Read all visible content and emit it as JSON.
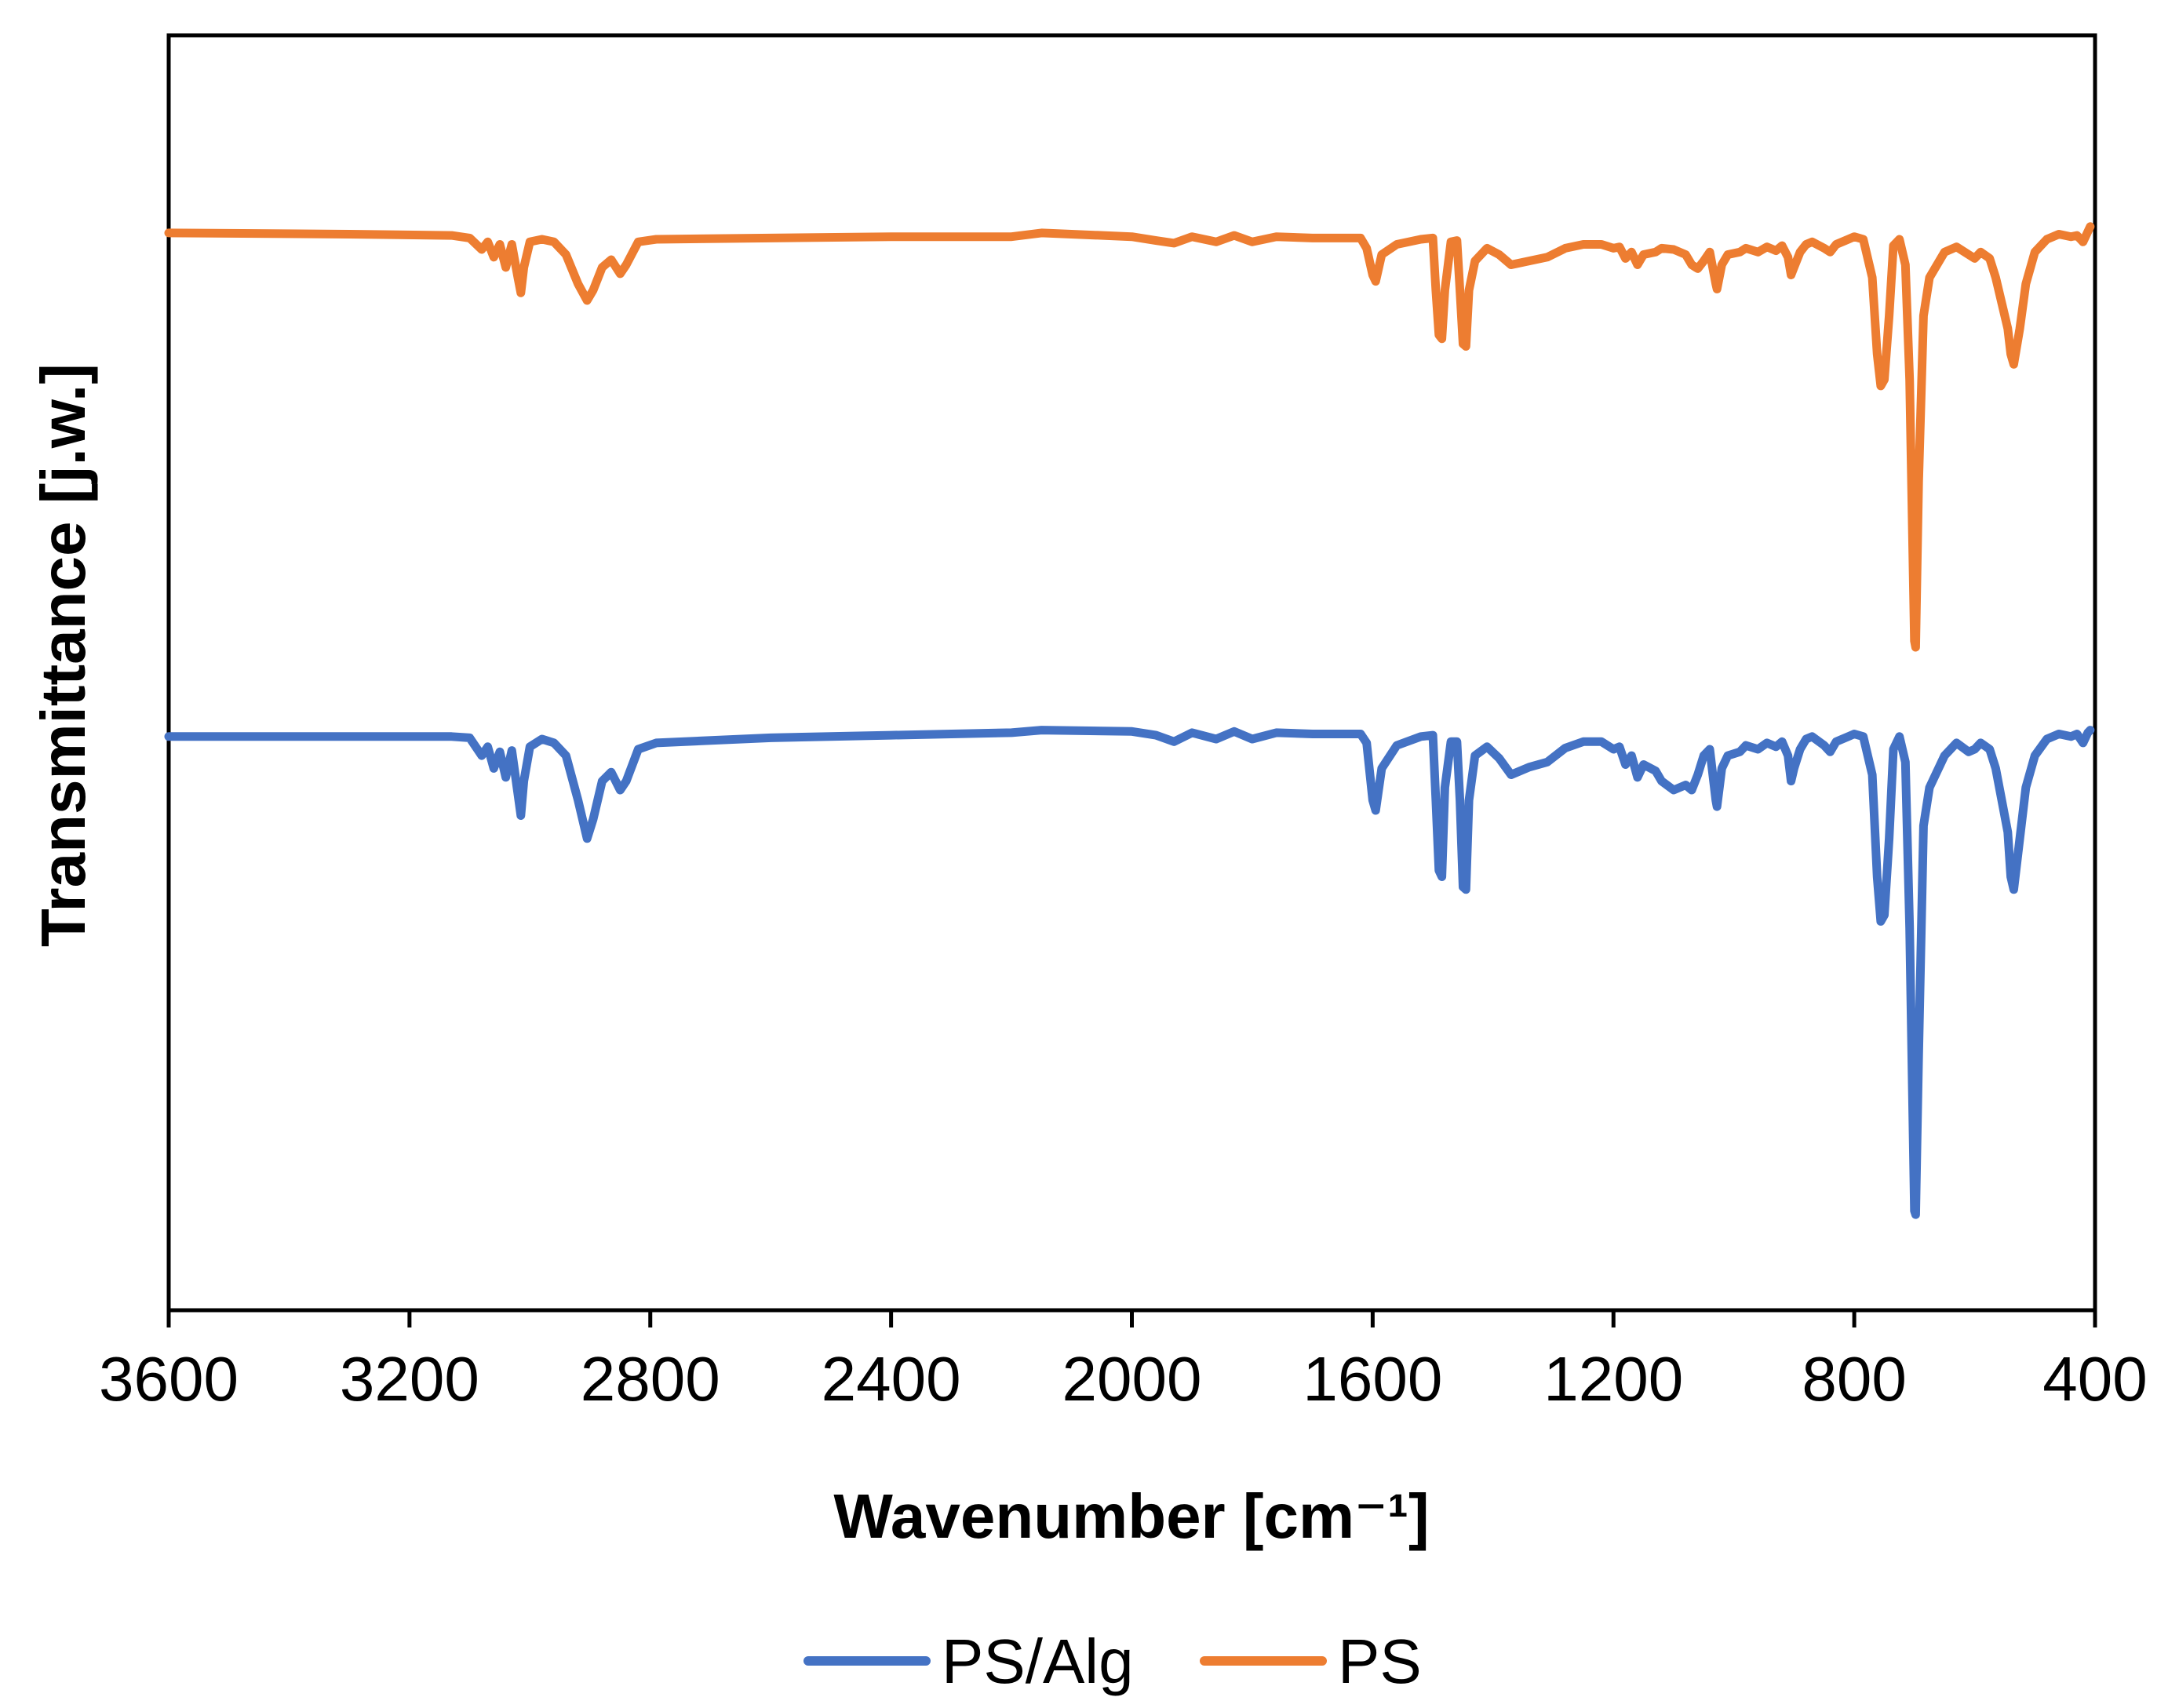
{
  "chart_data": {
    "type": "line",
    "title": "",
    "xlabel": "Wavenumber [cm⁻¹]",
    "ylabel": "Transmittance [j.w.]",
    "xlim": [
      3600,
      400
    ],
    "x_reversed": true,
    "ylim": [
      0,
      100
    ],
    "x_ticks": [
      "3600",
      "3200",
      "2800",
      "2400",
      "2000",
      "1600",
      "1200",
      "800",
      "400"
    ],
    "y_ticks_shown": false,
    "grid": false,
    "legend_position": "bottom",
    "series": [
      {
        "name": "PS/Alg",
        "color": "#4472C4",
        "points": [
          [
            3600,
            45.0
          ],
          [
            3300,
            45.0
          ],
          [
            3130,
            45.0
          ],
          [
            3100,
            44.9
          ],
          [
            3080,
            43.5
          ],
          [
            3070,
            44.2
          ],
          [
            3060,
            42.5
          ],
          [
            3050,
            43.8
          ],
          [
            3040,
            41.8
          ],
          [
            3030,
            43.9
          ],
          [
            3020,
            40.5
          ],
          [
            3015,
            38.8
          ],
          [
            3010,
            41.5
          ],
          [
            3000,
            44.2
          ],
          [
            2980,
            44.8
          ],
          [
            2960,
            44.5
          ],
          [
            2940,
            43.5
          ],
          [
            2920,
            40.0
          ],
          [
            2905,
            37.0
          ],
          [
            2895,
            38.5
          ],
          [
            2880,
            41.5
          ],
          [
            2865,
            42.2
          ],
          [
            2850,
            40.8
          ],
          [
            2840,
            41.5
          ],
          [
            2820,
            44.0
          ],
          [
            2790,
            44.5
          ],
          [
            2600,
            44.9
          ],
          [
            2400,
            45.1
          ],
          [
            2200,
            45.3
          ],
          [
            2150,
            45.5
          ],
          [
            2000,
            45.4
          ],
          [
            1960,
            45.1
          ],
          [
            1930,
            44.6
          ],
          [
            1900,
            45.3
          ],
          [
            1860,
            44.8
          ],
          [
            1830,
            45.4
          ],
          [
            1800,
            44.8
          ],
          [
            1760,
            45.3
          ],
          [
            1700,
            45.2
          ],
          [
            1620,
            45.2
          ],
          [
            1610,
            44.5
          ],
          [
            1600,
            40.0
          ],
          [
            1595,
            39.2
          ],
          [
            1585,
            42.5
          ],
          [
            1560,
            44.3
          ],
          [
            1520,
            45.0
          ],
          [
            1500,
            45.1
          ],
          [
            1495,
            40.0
          ],
          [
            1490,
            34.5
          ],
          [
            1485,
            34.0
          ],
          [
            1480,
            41.0
          ],
          [
            1470,
            44.6
          ],
          [
            1460,
            44.6
          ],
          [
            1455,
            40.0
          ],
          [
            1450,
            33.2
          ],
          [
            1445,
            33.0
          ],
          [
            1440,
            40.0
          ],
          [
            1430,
            43.5
          ],
          [
            1410,
            44.2
          ],
          [
            1390,
            43.3
          ],
          [
            1370,
            42.0
          ],
          [
            1340,
            42.6
          ],
          [
            1310,
            43.0
          ],
          [
            1280,
            44.1
          ],
          [
            1250,
            44.6
          ],
          [
            1220,
            44.6
          ],
          [
            1200,
            44.0
          ],
          [
            1190,
            44.2
          ],
          [
            1180,
            42.8
          ],
          [
            1170,
            43.5
          ],
          [
            1160,
            41.8
          ],
          [
            1150,
            42.8
          ],
          [
            1130,
            42.3
          ],
          [
            1120,
            41.5
          ],
          [
            1100,
            40.8
          ],
          [
            1080,
            41.2
          ],
          [
            1070,
            40.8
          ],
          [
            1060,
            42.0
          ],
          [
            1050,
            43.5
          ],
          [
            1040,
            44.0
          ],
          [
            1030,
            40.0
          ],
          [
            1028,
            39.5
          ],
          [
            1020,
            42.5
          ],
          [
            1010,
            43.5
          ],
          [
            990,
            43.8
          ],
          [
            980,
            44.3
          ],
          [
            960,
            44.0
          ],
          [
            945,
            44.5
          ],
          [
            930,
            44.2
          ],
          [
            920,
            44.6
          ],
          [
            910,
            43.5
          ],
          [
            905,
            41.5
          ],
          [
            900,
            42.5
          ],
          [
            890,
            44.0
          ],
          [
            880,
            44.8
          ],
          [
            870,
            45.0
          ],
          [
            850,
            44.3
          ],
          [
            840,
            43.8
          ],
          [
            830,
            44.6
          ],
          [
            810,
            45.0
          ],
          [
            800,
            45.2
          ],
          [
            785,
            45.0
          ],
          [
            770,
            42.0
          ],
          [
            762,
            34.0
          ],
          [
            756,
            30.5
          ],
          [
            750,
            31.0
          ],
          [
            742,
            37.0
          ],
          [
            735,
            44.0
          ],
          [
            725,
            45.0
          ],
          [
            715,
            43.0
          ],
          [
            708,
            30.0
          ],
          [
            700,
            7.8
          ],
          [
            698,
            7.5
          ],
          [
            693,
            20.0
          ],
          [
            685,
            38.0
          ],
          [
            675,
            41.0
          ],
          [
            650,
            43.5
          ],
          [
            630,
            44.5
          ],
          [
            610,
            43.8
          ],
          [
            600,
            44.0
          ],
          [
            590,
            44.5
          ],
          [
            575,
            44.0
          ],
          [
            565,
            42.5
          ],
          [
            555,
            40.0
          ],
          [
            545,
            37.5
          ],
          [
            540,
            34.0
          ],
          [
            535,
            33.0
          ],
          [
            525,
            37.0
          ],
          [
            515,
            41.0
          ],
          [
            500,
            43.5
          ],
          [
            480,
            44.8
          ],
          [
            460,
            45.2
          ],
          [
            440,
            45.0
          ],
          [
            430,
            45.2
          ],
          [
            420,
            44.5
          ],
          [
            412,
            45.3
          ],
          [
            408,
            45.5
          ]
        ]
      },
      {
        "name": "PS",
        "color": "#ED7D31",
        "points": [
          [
            3600,
            84.5
          ],
          [
            3300,
            84.4
          ],
          [
            3130,
            84.3
          ],
          [
            3100,
            84.1
          ],
          [
            3080,
            83.2
          ],
          [
            3070,
            83.8
          ],
          [
            3060,
            82.6
          ],
          [
            3050,
            83.6
          ],
          [
            3040,
            81.8
          ],
          [
            3030,
            83.6
          ],
          [
            3020,
            81.0
          ],
          [
            3015,
            79.8
          ],
          [
            3010,
            81.8
          ],
          [
            3000,
            83.8
          ],
          [
            2980,
            84.0
          ],
          [
            2960,
            83.8
          ],
          [
            2940,
            82.8
          ],
          [
            2920,
            80.5
          ],
          [
            2905,
            79.2
          ],
          [
            2895,
            80.0
          ],
          [
            2880,
            81.8
          ],
          [
            2865,
            82.4
          ],
          [
            2850,
            81.3
          ],
          [
            2840,
            82.0
          ],
          [
            2820,
            83.8
          ],
          [
            2790,
            84.0
          ],
          [
            2600,
            84.1
          ],
          [
            2400,
            84.2
          ],
          [
            2200,
            84.2
          ],
          [
            2150,
            84.5
          ],
          [
            2000,
            84.2
          ],
          [
            1960,
            83.9
          ],
          [
            1930,
            83.7
          ],
          [
            1900,
            84.2
          ],
          [
            1860,
            83.8
          ],
          [
            1830,
            84.3
          ],
          [
            1800,
            83.8
          ],
          [
            1760,
            84.2
          ],
          [
            1700,
            84.1
          ],
          [
            1620,
            84.1
          ],
          [
            1610,
            83.3
          ],
          [
            1600,
            81.2
          ],
          [
            1595,
            80.7
          ],
          [
            1585,
            82.8
          ],
          [
            1560,
            83.6
          ],
          [
            1520,
            84.0
          ],
          [
            1500,
            84.1
          ],
          [
            1495,
            80.0
          ],
          [
            1490,
            76.5
          ],
          [
            1485,
            76.2
          ],
          [
            1480,
            80.0
          ],
          [
            1470,
            83.8
          ],
          [
            1460,
            83.9
          ],
          [
            1455,
            80.0
          ],
          [
            1450,
            75.8
          ],
          [
            1445,
            75.6
          ],
          [
            1440,
            80.0
          ],
          [
            1430,
            82.3
          ],
          [
            1410,
            83.3
          ],
          [
            1390,
            82.8
          ],
          [
            1370,
            82.0
          ],
          [
            1340,
            82.3
          ],
          [
            1310,
            82.6
          ],
          [
            1280,
            83.3
          ],
          [
            1250,
            83.6
          ],
          [
            1220,
            83.6
          ],
          [
            1200,
            83.3
          ],
          [
            1190,
            83.4
          ],
          [
            1180,
            82.5
          ],
          [
            1170,
            83.0
          ],
          [
            1160,
            82.0
          ],
          [
            1150,
            82.8
          ],
          [
            1130,
            83.0
          ],
          [
            1120,
            83.3
          ],
          [
            1100,
            83.2
          ],
          [
            1080,
            82.8
          ],
          [
            1070,
            82.0
          ],
          [
            1060,
            81.7
          ],
          [
            1050,
            82.3
          ],
          [
            1040,
            83.0
          ],
          [
            1030,
            80.5
          ],
          [
            1028,
            80.1
          ],
          [
            1020,
            82.0
          ],
          [
            1010,
            82.8
          ],
          [
            990,
            83.0
          ],
          [
            980,
            83.3
          ],
          [
            960,
            83.0
          ],
          [
            945,
            83.4
          ],
          [
            930,
            83.1
          ],
          [
            920,
            83.5
          ],
          [
            910,
            82.6
          ],
          [
            905,
            81.2
          ],
          [
            900,
            81.8
          ],
          [
            890,
            83.0
          ],
          [
            880,
            83.6
          ],
          [
            870,
            83.8
          ],
          [
            850,
            83.3
          ],
          [
            840,
            83.0
          ],
          [
            830,
            83.6
          ],
          [
            810,
            84.0
          ],
          [
            800,
            84.2
          ],
          [
            785,
            84.0
          ],
          [
            770,
            81.0
          ],
          [
            762,
            75.0
          ],
          [
            756,
            72.5
          ],
          [
            750,
            73.0
          ],
          [
            742,
            78.0
          ],
          [
            735,
            83.5
          ],
          [
            725,
            84.0
          ],
          [
            715,
            82.0
          ],
          [
            708,
            73.0
          ],
          [
            700,
            52.5
          ],
          [
            698,
            52.0
          ],
          [
            693,
            65.0
          ],
          [
            685,
            78.0
          ],
          [
            675,
            81.0
          ],
          [
            650,
            83.0
          ],
          [
            630,
            83.4
          ],
          [
            610,
            82.8
          ],
          [
            600,
            82.5
          ],
          [
            590,
            83.0
          ],
          [
            575,
            82.5
          ],
          [
            565,
            81.0
          ],
          [
            555,
            79.0
          ],
          [
            545,
            77.0
          ],
          [
            540,
            75.0
          ],
          [
            535,
            74.2
          ],
          [
            525,
            77.0
          ],
          [
            515,
            80.5
          ],
          [
            500,
            83.0
          ],
          [
            480,
            84.0
          ],
          [
            460,
            84.4
          ],
          [
            440,
            84.2
          ],
          [
            430,
            84.3
          ],
          [
            420,
            83.8
          ],
          [
            412,
            84.6
          ],
          [
            408,
            85.0
          ]
        ]
      }
    ],
    "legend": [
      "PS/Alg",
      "PS"
    ]
  }
}
